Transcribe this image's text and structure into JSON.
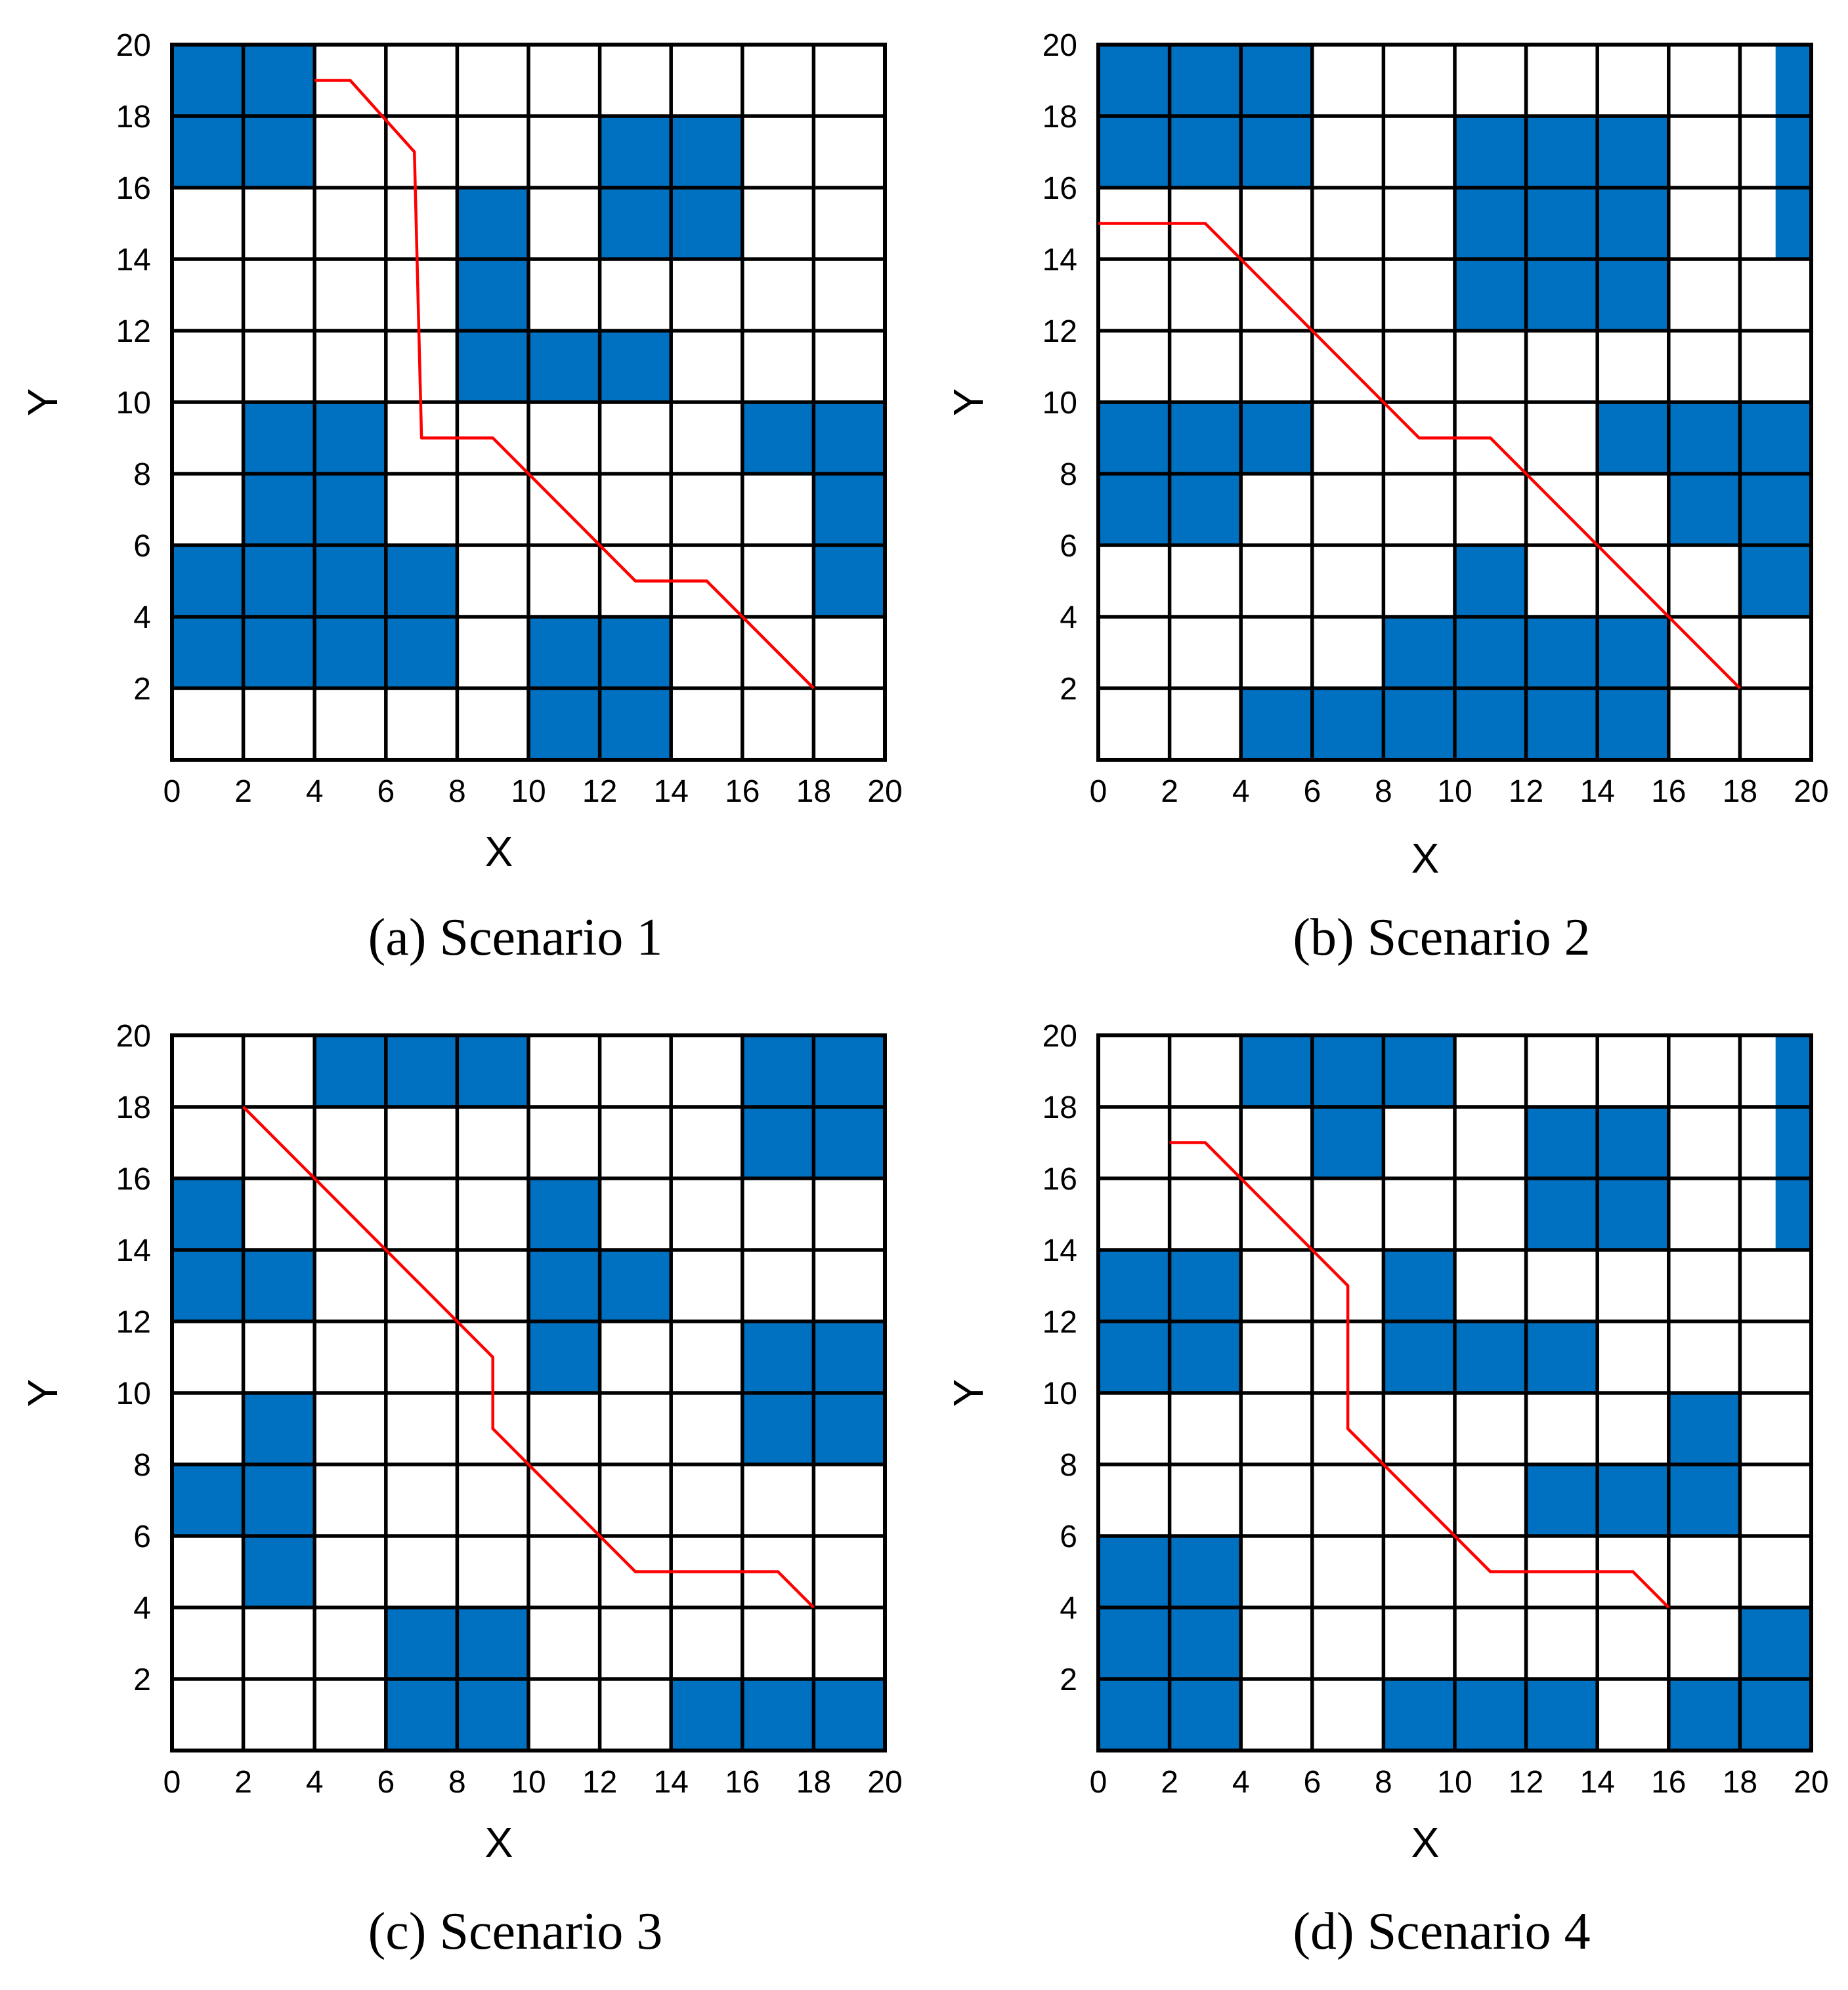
{
  "colors": {
    "obstacle": "#0070c0",
    "path": "#ff0000",
    "grid": "#000000"
  },
  "chart_data": [
    {
      "type": "grid-map",
      "caption": "(a) Scenario 1",
      "xlabel": "X",
      "ylabel": "Y",
      "xlim": [
        0,
        20
      ],
      "ylim": [
        0,
        20
      ],
      "xticks": [
        0,
        2,
        4,
        6,
        8,
        10,
        12,
        14,
        16,
        18,
        20
      ],
      "yticks": [
        2,
        4,
        6,
        8,
        10,
        12,
        14,
        16,
        18,
        20
      ],
      "grid_step": 2,
      "obstacles": [
        [
          0,
          16,
          4,
          20
        ],
        [
          12,
          14,
          16,
          18
        ],
        [
          8,
          10,
          10,
          16
        ],
        [
          10,
          10,
          14,
          12
        ],
        [
          2,
          6,
          6,
          10
        ],
        [
          0,
          2,
          8,
          6
        ],
        [
          18,
          4,
          20,
          10
        ],
        [
          16,
          8,
          18,
          10
        ],
        [
          10,
          0,
          14,
          4
        ]
      ],
      "path": [
        [
          4,
          19
        ],
        [
          5,
          19
        ],
        [
          6.8,
          17
        ],
        [
          7,
          9
        ],
        [
          9,
          9
        ],
        [
          13,
          5
        ],
        [
          15,
          5
        ],
        [
          18,
          2
        ]
      ]
    },
    {
      "type": "grid-map",
      "caption": "(b) Scenario 2",
      "xlabel": "X",
      "ylabel": "Y",
      "xlim": [
        0,
        20
      ],
      "ylim": [
        0,
        20
      ],
      "xticks": [
        0,
        2,
        4,
        6,
        8,
        10,
        12,
        14,
        16,
        18,
        20
      ],
      "yticks": [
        2,
        4,
        6,
        8,
        10,
        12,
        14,
        16,
        18,
        20
      ],
      "grid_step": 2,
      "obstacles": [
        [
          0,
          16,
          6,
          20
        ],
        [
          19,
          14,
          20,
          20
        ],
        [
          10,
          12,
          16,
          18
        ],
        [
          0,
          8,
          6,
          10
        ],
        [
          0,
          6,
          4,
          8
        ],
        [
          14,
          8,
          20,
          10
        ],
        [
          16,
          6,
          20,
          8
        ],
        [
          18,
          4,
          20,
          6
        ],
        [
          4,
          0,
          16,
          2
        ],
        [
          8,
          2,
          16,
          4
        ],
        [
          10,
          4,
          12,
          6
        ]
      ],
      "path": [
        [
          0,
          15
        ],
        [
          3,
          15
        ],
        [
          9,
          9
        ],
        [
          11,
          9
        ],
        [
          18,
          2
        ]
      ]
    },
    {
      "type": "grid-map",
      "caption": "(c) Scenario 3",
      "xlabel": "X",
      "ylabel": "Y",
      "xlim": [
        0,
        20
      ],
      "ylim": [
        0,
        20
      ],
      "xticks": [
        0,
        2,
        4,
        6,
        8,
        10,
        12,
        14,
        16,
        18,
        20
      ],
      "yticks": [
        2,
        4,
        6,
        8,
        10,
        12,
        14,
        16,
        18,
        20
      ],
      "grid_step": 2,
      "obstacles": [
        [
          4,
          18,
          10,
          20
        ],
        [
          16,
          16,
          20,
          20
        ],
        [
          0,
          14,
          2,
          16
        ],
        [
          0,
          12,
          4,
          14
        ],
        [
          10,
          10,
          12,
          16
        ],
        [
          12,
          12,
          14,
          14
        ],
        [
          16,
          8,
          20,
          12
        ],
        [
          2,
          4,
          4,
          10
        ],
        [
          0,
          6,
          2,
          8
        ],
        [
          6,
          0,
          10,
          4
        ],
        [
          14,
          0,
          20,
          2
        ]
      ],
      "path": [
        [
          2,
          18
        ],
        [
          9,
          11
        ],
        [
          9,
          9
        ],
        [
          13,
          5
        ],
        [
          17,
          5
        ],
        [
          18,
          4
        ]
      ]
    },
    {
      "type": "grid-map",
      "caption": "(d) Scenario 4",
      "xlabel": "X",
      "ylabel": "Y",
      "xlim": [
        0,
        20
      ],
      "ylim": [
        0,
        20
      ],
      "xticks": [
        0,
        2,
        4,
        6,
        8,
        10,
        12,
        14,
        16,
        18,
        20
      ],
      "yticks": [
        2,
        4,
        6,
        8,
        10,
        12,
        14,
        16,
        18,
        20
      ],
      "grid_step": 2,
      "obstacles": [
        [
          4,
          18,
          10,
          20
        ],
        [
          6,
          16,
          8,
          18
        ],
        [
          12,
          14,
          16,
          18
        ],
        [
          19,
          14,
          20,
          20
        ],
        [
          0,
          10,
          4,
          14
        ],
        [
          8,
          10,
          10,
          14
        ],
        [
          10,
          10,
          14,
          12
        ],
        [
          12,
          6,
          18,
          8
        ],
        [
          16,
          8,
          18,
          10
        ],
        [
          0,
          0,
          4,
          6
        ],
        [
          8,
          0,
          14,
          2
        ],
        [
          16,
          0,
          20,
          2
        ],
        [
          18,
          2,
          20,
          4
        ]
      ],
      "path": [
        [
          2,
          17
        ],
        [
          3,
          17
        ],
        [
          7,
          13
        ],
        [
          7,
          9
        ],
        [
          11,
          5
        ],
        [
          15,
          5
        ],
        [
          16,
          4
        ]
      ]
    }
  ]
}
